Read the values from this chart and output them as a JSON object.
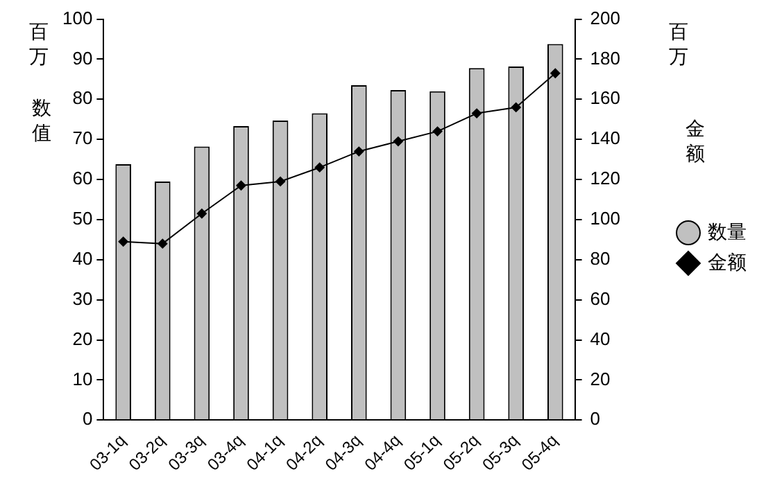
{
  "chart_data": {
    "type": "bar",
    "categories": [
      "03-1q",
      "03-2q",
      "03-3q",
      "03-4q",
      "04-1q",
      "04-2q",
      "04-3q",
      "04-4q",
      "05-1q",
      "05-2q",
      "05-3q",
      "05-4q"
    ],
    "series": [
      {
        "name": "数量",
        "color": "#c0c0c0",
        "values": [
          63.8,
          59.5,
          68.2,
          73.3,
          74.7,
          76.5,
          83.5,
          82.3,
          82.0,
          87.8,
          88.2,
          93.8
        ]
      },
      {
        "name": "金额",
        "type": "line",
        "axis": "y2",
        "color": "#000000",
        "marker": "diamond",
        "values": [
          89,
          88,
          103,
          117,
          119,
          126,
          134,
          139,
          144,
          153,
          156,
          173
        ]
      }
    ],
    "ylabel": "数值",
    "y2label": "金额",
    "annotations": [
      "百万",
      "百万"
    ],
    "ylim": [
      0,
      100
    ],
    "yticks": [
      0,
      10,
      20,
      30,
      40,
      50,
      60,
      70,
      80,
      90,
      100
    ],
    "y2lim": [
      0,
      200
    ],
    "y2ticks": [
      0,
      20,
      40,
      60,
      80,
      100,
      120,
      140,
      160,
      180,
      200
    ],
    "grid": false,
    "legend": "right"
  }
}
